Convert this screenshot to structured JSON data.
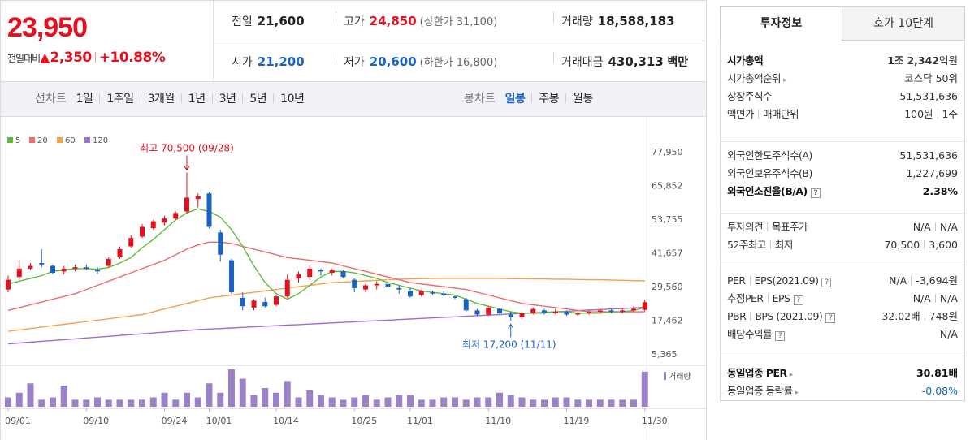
{
  "summary": {
    "current_price": "23,950",
    "change_label": "전일대비",
    "change_arrow": "▲",
    "change_value": "2,350",
    "change_rate": "+10.88%",
    "prev_close": {
      "label": "전일",
      "value": "21,600"
    },
    "high": {
      "label": "고가",
      "value": "24,850",
      "sub": "(상한가 31,100)"
    },
    "volume": {
      "label": "거래량",
      "value": "18,588,183"
    },
    "open": {
      "label": "시가",
      "value": "21,200"
    },
    "low": {
      "label": "저가",
      "value": "20,600",
      "sub": "(하한가 16,800)"
    },
    "trade_value": {
      "label": "거래대금",
      "value": "430,313",
      "unit": "백만"
    }
  },
  "chart_bar": {
    "line_label": "선차트",
    "ranges": [
      "1일",
      "1주일",
      "3개월",
      "1년",
      "3년",
      "5년",
      "10년"
    ],
    "candle_label": "봉차트",
    "candles": [
      "일봉",
      "주봉",
      "월봉"
    ],
    "active_candle": "일봉"
  },
  "colors": {
    "up": "#e4101e",
    "down": "#1b62c5",
    "ma5": "#5cbd3a",
    "ma20": "#f06a6a",
    "ma60": "#f4a24a",
    "ma120": "#9b6fd0",
    "volume": "#9b82c8"
  },
  "chart_data": {
    "type": "candlestick",
    "legend": [
      {
        "label": "5",
        "color": "#5cbd3a"
      },
      {
        "label": "20",
        "color": "#f06a6a"
      },
      {
        "label": "60",
        "color": "#f4a24a"
      },
      {
        "label": "120",
        "color": "#9b6fd0"
      }
    ],
    "y_ticks": [
      "77,950",
      "65,852",
      "53,755",
      "41,657",
      "29,560",
      "17,462",
      "5,365"
    ],
    "ylim": [
      5365,
      77950
    ],
    "x_ticks": [
      {
        "label": "09/01",
        "index": 0
      },
      {
        "label": "09/10",
        "index": 7
      },
      {
        "label": "09/24",
        "index": 14
      },
      {
        "label": "10/01",
        "index": 18
      },
      {
        "label": "10/14",
        "index": 24
      },
      {
        "label": "10/25",
        "index": 31
      },
      {
        "label": "11/01",
        "index": 36
      },
      {
        "label": "11/10",
        "index": 43
      },
      {
        "label": "11/19",
        "index": 50
      },
      {
        "label": "11/30",
        "index": 57
      }
    ],
    "annotations": {
      "high": {
        "label": "최고 70,500 (09/28)",
        "index": 16,
        "value": 70500
      },
      "low": {
        "label": "최저 17,200 (11/11)",
        "index": 45,
        "value": 17200
      }
    },
    "volume_label": "거래량",
    "candles": [
      [
        0,
        28500,
        33500,
        27500,
        32000
      ],
      [
        1,
        33000,
        39000,
        32000,
        36000
      ],
      [
        2,
        36000,
        38000,
        35500,
        37000
      ],
      [
        3,
        38000,
        43000,
        36500,
        37500
      ],
      [
        4,
        37000,
        37500,
        34000,
        34500
      ],
      [
        5,
        35000,
        37000,
        34000,
        36000
      ],
      [
        6,
        36000,
        37500,
        35000,
        36500
      ],
      [
        7,
        36500,
        37500,
        35500,
        36000
      ],
      [
        8,
        35500,
        36500,
        34000,
        35000
      ],
      [
        9,
        37000,
        40000,
        36500,
        39500
      ],
      [
        10,
        40000,
        44000,
        39500,
        43000
      ],
      [
        11,
        44000,
        48000,
        43500,
        47000
      ],
      [
        12,
        47500,
        52000,
        47000,
        51000
      ],
      [
        13,
        50500,
        53500,
        50000,
        53000
      ],
      [
        14,
        52500,
        55000,
        51500,
        54000
      ],
      [
        15,
        54000,
        56500,
        53500,
        56000
      ],
      [
        16,
        56500,
        70500,
        55500,
        61500
      ],
      [
        17,
        61000,
        63000,
        58000,
        62000
      ],
      [
        18,
        63000,
        63500,
        50500,
        51000
      ],
      [
        19,
        49000,
        50000,
        38500,
        41000
      ],
      [
        20,
        39000,
        39500,
        27000,
        27500
      ],
      [
        21,
        25500,
        27500,
        21000,
        22500
      ],
      [
        22,
        22000,
        25000,
        21000,
        24500
      ],
      [
        23,
        24000,
        25500,
        22000,
        22500
      ],
      [
        24,
        23000,
        26500,
        22500,
        26000
      ],
      [
        25,
        26000,
        34000,
        25500,
        32000
      ],
      [
        26,
        32500,
        35000,
        31000,
        34000
      ],
      [
        27,
        33000,
        37000,
        32000,
        36000
      ],
      [
        28,
        35500,
        36000,
        33500,
        35000
      ],
      [
        29,
        34500,
        36000,
        33500,
        35500
      ],
      [
        30,
        35000,
        35500,
        32500,
        33000
      ],
      [
        31,
        32000,
        32500,
        27500,
        29000
      ],
      [
        32,
        28500,
        30500,
        27500,
        30000
      ],
      [
        33,
        30000,
        31500,
        28500,
        30500
      ],
      [
        34,
        30500,
        31000,
        29000,
        29500
      ],
      [
        35,
        29000,
        30000,
        27000,
        28500
      ],
      [
        36,
        28000,
        29000,
        25500,
        26000
      ],
      [
        37,
        26500,
        28500,
        26000,
        28000
      ],
      [
        38,
        27500,
        28000,
        26500,
        27000
      ],
      [
        39,
        27000,
        28000,
        26000,
        26500
      ],
      [
        40,
        26000,
        26500,
        25000,
        25500
      ],
      [
        41,
        25000,
        25500,
        20500,
        21000
      ],
      [
        42,
        21000,
        21500,
        19000,
        19500
      ],
      [
        43,
        19500,
        22500,
        19000,
        22000
      ],
      [
        44,
        21500,
        22000,
        19500,
        20000
      ],
      [
        45,
        19500,
        20500,
        17200,
        18500
      ],
      [
        46,
        18500,
        20500,
        18000,
        20000
      ],
      [
        47,
        20000,
        22000,
        19500,
        21500
      ],
      [
        48,
        21000,
        21500,
        19500,
        20000
      ],
      [
        49,
        20000,
        21500,
        19500,
        20500
      ],
      [
        50,
        20500,
        21000,
        19000,
        19500
      ],
      [
        51,
        19500,
        20500,
        19000,
        20000
      ],
      [
        52,
        20000,
        21000,
        19500,
        20500
      ],
      [
        53,
        20500,
        21500,
        20000,
        21000
      ],
      [
        54,
        21000,
        21500,
        20000,
        20500
      ],
      [
        55,
        20500,
        21500,
        20000,
        21000
      ],
      [
        56,
        21000,
        22500,
        20500,
        21600
      ],
      [
        57,
        21200,
        24850,
        20600,
        23950
      ]
    ],
    "ma5": [
      30500,
      31500,
      32500,
      33500,
      35000,
      35500,
      36000,
      36000,
      35800,
      36400,
      38000,
      40000,
      43500,
      46500,
      50000,
      53500,
      56000,
      57500,
      56500,
      54500,
      50000,
      44000,
      37000,
      31000,
      27000,
      25000,
      27000,
      30000,
      33000,
      35000,
      35000,
      34500,
      33500,
      32500,
      31000,
      30000,
      29000,
      28000,
      27500,
      27000,
      26500,
      25000,
      23500,
      22500,
      21500,
      20500,
      20000,
      20000,
      20000,
      20500,
      20500,
      20000,
      20000,
      20000,
      20500,
      20500,
      21000,
      22000
    ],
    "ma20": [
      21000,
      22000,
      23000,
      24000,
      25000,
      26000,
      27000,
      28500,
      30000,
      31500,
      33000,
      34500,
      36000,
      37500,
      39000,
      41000,
      43000,
      44500,
      45500,
      45500,
      45000,
      44000,
      43000,
      42000,
      41000,
      40000,
      39500,
      39000,
      38500,
      38000,
      37000,
      36000,
      35000,
      34000,
      33000,
      32000,
      31000,
      30500,
      30000,
      29500,
      29000,
      28500,
      27500,
      26500,
      25500,
      24500,
      23500,
      23000,
      22500,
      22000,
      21500,
      21000,
      20500,
      20500,
      20500,
      20500,
      20500,
      20500
    ],
    "ma60": [
      13500,
      14000,
      14500,
      15000,
      15500,
      16000,
      16500,
      17000,
      17500,
      18000,
      18500,
      19000,
      19500,
      20500,
      21500,
      22500,
      23500,
      24500,
      25500,
      26000,
      26500,
      27000,
      27500,
      28000,
      28500,
      29000,
      29500,
      30000,
      30500,
      31000,
      31200,
      31400,
      31600,
      31800,
      32000,
      32200,
      32300,
      32400,
      32500,
      32500,
      32500,
      32500,
      32500,
      32500,
      32500,
      32400,
      32400,
      32300,
      32300,
      32200,
      32200,
      32100,
      32000,
      32000,
      31900,
      31800,
      31700,
      31600
    ],
    "ma120": [
      9000,
      9300,
      9600,
      9900,
      10200,
      10500,
      10800,
      11100,
      11400,
      11700,
      12000,
      12300,
      12600,
      12900,
      13200,
      13500,
      13800,
      14100,
      14300,
      14500,
      14700,
      14900,
      15100,
      15300,
      15500,
      15700,
      15900,
      16100,
      16300,
      16500,
      16700,
      16900,
      17100,
      17300,
      17500,
      17700,
      17900,
      18100,
      18300,
      18500,
      18700,
      18900,
      19100,
      19300,
      19500,
      19700,
      19900,
      20100,
      20300,
      20500,
      20700,
      20900,
      21100,
      21300,
      21500,
      21700,
      21900,
      22100
    ],
    "volumes": [
      4,
      6,
      10,
      3,
      4,
      9,
      3,
      3,
      4,
      3,
      3,
      3,
      3,
      4,
      6,
      3,
      6,
      4,
      10,
      6,
      16,
      12,
      5,
      8,
      6,
      11,
      4,
      7,
      5,
      4,
      3,
      4,
      5,
      3,
      4,
      5,
      5,
      3,
      3,
      4,
      4,
      3,
      4,
      4,
      6,
      5,
      4,
      3,
      3,
      4,
      4,
      3,
      3,
      3,
      3,
      3,
      3,
      15
    ]
  },
  "right_panel": {
    "tabs": [
      "투자정보",
      "호가 10단계"
    ],
    "market_cap": {
      "label": "시가총액",
      "value_num1": "1조",
      "value_num2": "2,342",
      "unit": "억원"
    },
    "cap_rank": {
      "label": "시가총액순위",
      "value": "코스닥 50위"
    },
    "shares": {
      "label": "상장주식수",
      "value": "51,531,636"
    },
    "par_label1": "액면가",
    "par_label2": "매매단위",
    "par_value1": "100원",
    "par_value2": "1주",
    "foreign_limit": {
      "label": "외국인한도주식수(A)",
      "value": "51,531,636"
    },
    "foreign_hold": {
      "label": "외국인보유주식수(B)",
      "value": "1,227,699"
    },
    "foreign_rate": {
      "label": "외국인소진율(B/A)",
      "value": "2.38%"
    },
    "opinion_label1": "투자의견",
    "opinion_label2": "목표주가",
    "opinion_value1": "N/A",
    "opinion_value2": "N/A",
    "w52_label1": "52주최고",
    "w52_label2": "최저",
    "w52_value1": "70,500",
    "w52_value2": "3,600",
    "per_label1": "PER",
    "per_label2": "EPS(2021.09)",
    "per_value1": "N/A",
    "per_value2": "-3,694원",
    "est_label1": "추정PER",
    "est_label2": "EPS",
    "est_value1": "N/A",
    "est_value2": "N/A",
    "pbr_label1": "PBR",
    "pbr_label2": "BPS (2021.09)",
    "pbr_value1": "32.02배",
    "pbr_value2": "748원",
    "dividend": {
      "label": "배당수익률",
      "value": "N/A"
    },
    "industry_per": {
      "label": "동일업종 PER",
      "value": "30.81배"
    },
    "industry_rate": {
      "label": "동일업종 등락률",
      "value": "-0.08%"
    }
  }
}
